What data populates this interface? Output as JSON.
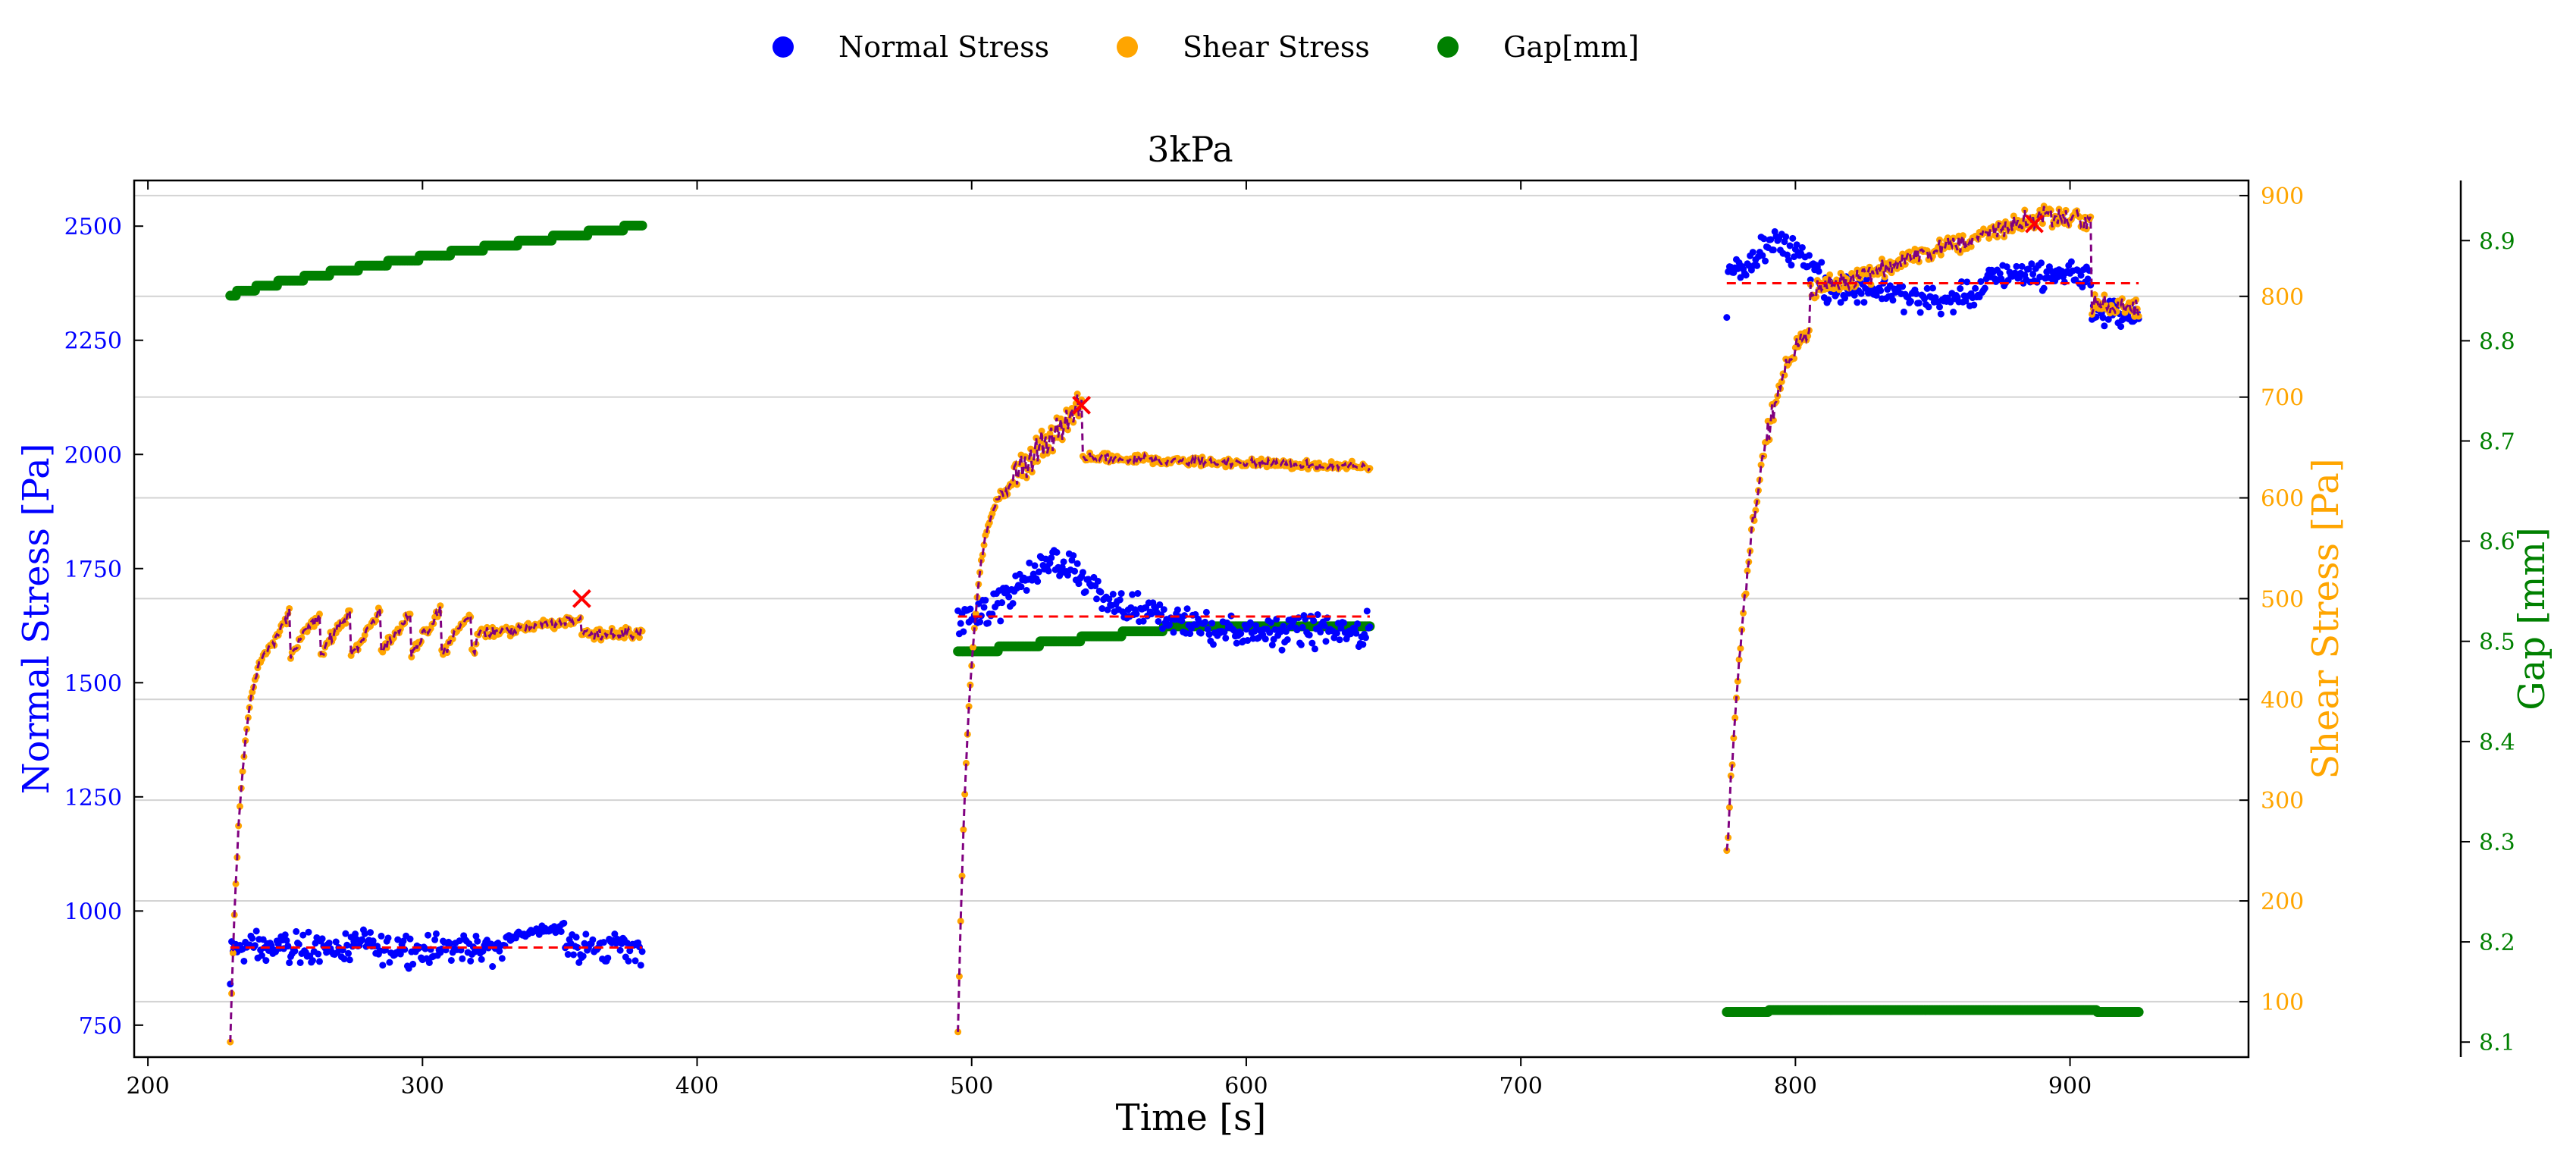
{
  "chart_data": {
    "type": "scatter",
    "title": "3kPa",
    "xlabel": "Time [s]",
    "xlim": [
      195,
      965
    ],
    "xticks": [
      "200",
      "300",
      "400",
      "500",
      "600",
      "700",
      "800",
      "900"
    ],
    "xtick_values": [
      200,
      300,
      400,
      500,
      600,
      700,
      800,
      900
    ],
    "legend_position": "top-center",
    "grid": "horizontal",
    "y_left": {
      "label": "Normal Stress [Pa]",
      "color": "#0000ff",
      "lim": [
        680,
        2600
      ],
      "ticks": [
        "750",
        "1000",
        "1250",
        "1500",
        "1750",
        "2000",
        "2250",
        "2500"
      ],
      "tick_values": [
        750,
        1000,
        1250,
        1500,
        1750,
        2000,
        2250,
        2500
      ]
    },
    "y_right": {
      "label": "Shear Stress [Pa]",
      "color": "#ffa500",
      "lim": [
        45,
        915
      ],
      "ticks": [
        "100",
        "200",
        "300",
        "400",
        "500",
        "600",
        "700",
        "800",
        "900"
      ],
      "tick_values": [
        100,
        200,
        300,
        400,
        500,
        600,
        700,
        800,
        900
      ]
    },
    "y_right2": {
      "label": "Gap [mm]",
      "color": "#008000",
      "lim": [
        8.085,
        8.96
      ],
      "ticks": [
        "8.1",
        "8.2",
        "8.3",
        "8.4",
        "8.5",
        "8.6",
        "8.7",
        "8.8",
        "8.9"
      ],
      "tick_values": [
        8.1,
        8.2,
        8.3,
        8.4,
        8.5,
        8.6,
        8.7,
        8.8,
        8.9
      ]
    },
    "legend": [
      {
        "name": "Normal Stress",
        "color": "#0000ff"
      },
      {
        "name": "Shear Stress",
        "color": "#ffa500"
      },
      {
        "name": "Gap[mm]",
        "color": "#008000"
      }
    ],
    "segments": [
      {
        "t_start": 230,
        "t_end": 380,
        "normal_mean": 920,
        "normal_noise": 28,
        "normal_first": 840,
        "normal_ramp_peak": 975,
        "normal_ramp_end": 350,
        "shear_start": 60,
        "shear_plateau": 465,
        "shear_rise_time": 9,
        "shear_oscillation": 20,
        "shear_late_level": 465,
        "shear_late_start": 320,
        "shear_drop_time": 358,
        "shear_after_drop": 465,
        "peak_time": 358,
        "peak_shear": 500,
        "normal_avg_line": 920,
        "gap_start": 8.845,
        "gap_end": 8.915,
        "gap_shape": "rising"
      },
      {
        "t_start": 495,
        "t_end": 645,
        "normal_mean": 1630,
        "normal_noise": 30,
        "normal_first": 1650,
        "normal_hump_peak": 1760,
        "normal_hump_time": 530,
        "shear_start": 70,
        "shear_plateau": 620,
        "shear_rise_time": 10,
        "shear_peak_time": 540,
        "shear_peak": 690,
        "shear_after_peak": 640,
        "shear_end": 630,
        "peak_time": 540,
        "peak_shear": 692,
        "normal_avg_line": 1645,
        "gap_start": 8.49,
        "gap_end": 8.515,
        "gap_shape": "steps"
      },
      {
        "t_start": 775,
        "t_end": 925,
        "normal_mean": 2370,
        "normal_noise": 25,
        "normal_first": 2300,
        "normal_hump_peak": 2460,
        "normal_hump_time": 793,
        "normal_drop_time": 908,
        "normal_after_drop": 2310,
        "shear_start": 250,
        "shear_plateau": 805,
        "shear_rise_time": 24,
        "shear_climb_end": 870,
        "shear_peak": 880,
        "shear_peak_time": 890,
        "shear_drop_time": 908,
        "shear_after_drop": 790,
        "peak_time": 887,
        "peak_shear": 872,
        "normal_avg_line": 2375,
        "gap_start": 8.13,
        "gap_end": 8.13,
        "gap_shape": "flat"
      }
    ]
  }
}
